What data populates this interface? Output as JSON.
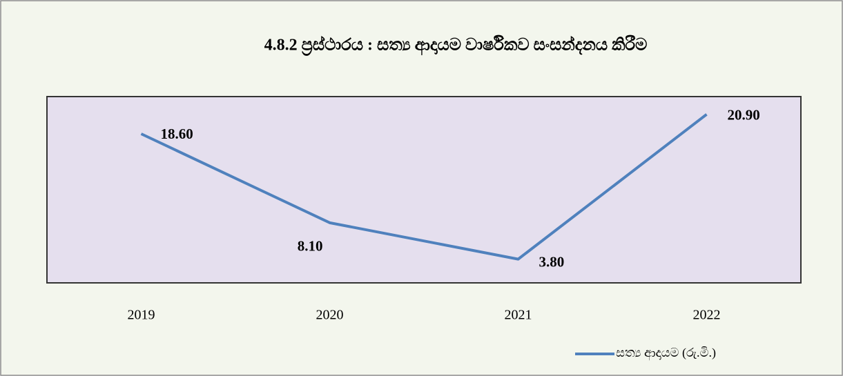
{
  "chart_data": {
    "type": "line",
    "title": "4.8.2 ප්‍රස්ථාරය : සත්‍ය ආදායම වාර්ෂිකව සංසන්දනය කිරීම",
    "categories": [
      "2019",
      "2020",
      "2021",
      "2022"
    ],
    "series": [
      {
        "name": "සත්‍ය ආදායම (රු.මි.)",
        "color": "#4f81bd",
        "values": [
          18.6,
          8.1,
          3.8,
          20.9
        ],
        "value_labels": [
          "18.60",
          "8.10",
          "3.80",
          "20.90"
        ]
      }
    ],
    "ylim": [
      1,
      23
    ],
    "legend": "bottom-right"
  }
}
